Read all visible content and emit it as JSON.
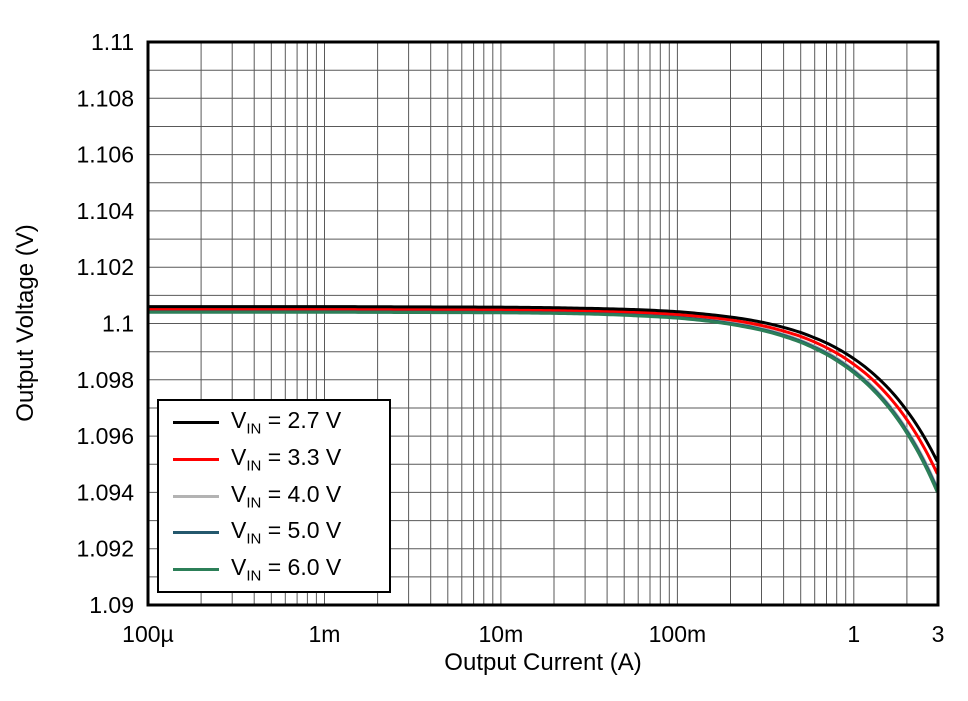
{
  "figure": {
    "background": "#ffffff"
  },
  "chart_data": {
    "type": "line",
    "title": "",
    "xlabel": "Output Current (A)",
    "ylabel": "Output Voltage (V)",
    "x_scale": "log",
    "y_scale": "linear",
    "xlim": [
      0.0001,
      3
    ],
    "ylim": [
      1.09,
      1.11
    ],
    "grid": true,
    "grid_color": "#595959",
    "frame_color": "#000000",
    "y_minor_step": 0.001,
    "line_width": 3,
    "legend_position": "lower-left",
    "x_ticks": {
      "values": [
        0.0001,
        0.001,
        0.01,
        0.1,
        1,
        3
      ],
      "labels": [
        "100µ",
        "1m",
        "10m",
        "100m",
        "1",
        "3"
      ]
    },
    "y_ticks": {
      "values": [
        1.09,
        1.092,
        1.094,
        1.096,
        1.098,
        1.1,
        1.102,
        1.104,
        1.106,
        1.108,
        1.11
      ],
      "labels": [
        "1.09",
        "1.092",
        "1.094",
        "1.096",
        "1.098",
        "1.1",
        "1.102",
        "1.104",
        "1.106",
        "1.108",
        "1.11"
      ]
    },
    "x": [
      0.0001,
      0.0003,
      0.001,
      0.003,
      0.01,
      0.03,
      0.06,
      0.1,
      0.15,
      0.2,
      0.25,
      0.3,
      0.4,
      0.5,
      0.6,
      0.7,
      0.85,
      1.0,
      1.2,
      1.4,
      1.7,
      2.0,
      2.3,
      2.6,
      2.8,
      3.0
    ],
    "series": [
      {
        "id": "vin-2v7",
        "label_prefix": "V",
        "label_sub": "IN",
        "label_suffix": " = 2.7 V",
        "color": "#000000",
        "values": [
          1.1006,
          1.1006,
          1.1006,
          1.10059,
          1.10058,
          1.10054,
          1.10049,
          1.10042,
          1.10032,
          1.10023,
          1.10014,
          1.10005,
          1.09986,
          1.09968,
          1.09949,
          1.09931,
          1.09903,
          1.09875,
          1.09838,
          1.09801,
          1.09746,
          1.0969,
          1.09635,
          1.09579,
          1.09542,
          1.09505
        ]
      },
      {
        "id": "vin-3v3",
        "label_prefix": "V",
        "label_sub": "IN",
        "label_suffix": " = 3.3 V",
        "color": "#ff0000",
        "values": [
          1.10052,
          1.10052,
          1.10052,
          1.10051,
          1.1005,
          1.10046,
          1.1004,
          1.10032,
          1.10022,
          1.10013,
          1.10003,
          1.09993,
          1.09973,
          1.09954,
          1.09934,
          1.09914,
          1.09885,
          1.09855,
          1.09816,
          1.09776,
          1.09717,
          1.09658,
          1.09599,
          1.0954,
          1.095,
          1.09461
        ]
      },
      {
        "id": "vin-4v0",
        "label_prefix": "V",
        "label_sub": "IN",
        "label_suffix": " = 4.0 V",
        "color": "#b3b3b3",
        "values": [
          1.10046,
          1.10046,
          1.10046,
          1.10045,
          1.10044,
          1.1004,
          1.10033,
          1.10025,
          1.10014,
          1.10004,
          1.09993,
          1.09982,
          1.09961,
          1.0994,
          1.09919,
          1.09898,
          1.09866,
          1.09834,
          1.09792,
          1.09749,
          1.09686,
          1.09622,
          1.09558,
          1.09495,
          1.09452,
          1.0941
        ]
      },
      {
        "id": "vin-5v0",
        "label_prefix": "V",
        "label_sub": "IN",
        "label_suffix": " = 5.0 V",
        "color": "#24586d",
        "values": [
          1.10043,
          1.10043,
          1.10043,
          1.10042,
          1.10041,
          1.10037,
          1.1003,
          1.10022,
          1.10011,
          1.1,
          1.0999,
          1.09979,
          1.09958,
          1.09937,
          1.09915,
          1.09894,
          1.09862,
          1.0983,
          1.09787,
          1.09745,
          1.09681,
          1.09617,
          1.09553,
          1.09489,
          1.09447,
          1.09404
        ]
      },
      {
        "id": "vin-6v0",
        "label_prefix": "V",
        "label_sub": "IN",
        "label_suffix": " = 6.0 V",
        "color": "#2c7f58",
        "values": [
          1.1004,
          1.1004,
          1.1004,
          1.10039,
          1.10038,
          1.10034,
          1.10027,
          1.10019,
          1.10008,
          1.09997,
          1.09986,
          1.09976,
          1.09954,
          1.09933,
          1.09911,
          1.0989,
          1.09857,
          1.09825,
          1.09782,
          1.09739,
          1.09675,
          1.0961,
          1.09546,
          1.09481,
          1.09438,
          1.09395
        ]
      }
    ],
    "draw_order": [
      2,
      3,
      4,
      1,
      0
    ]
  }
}
